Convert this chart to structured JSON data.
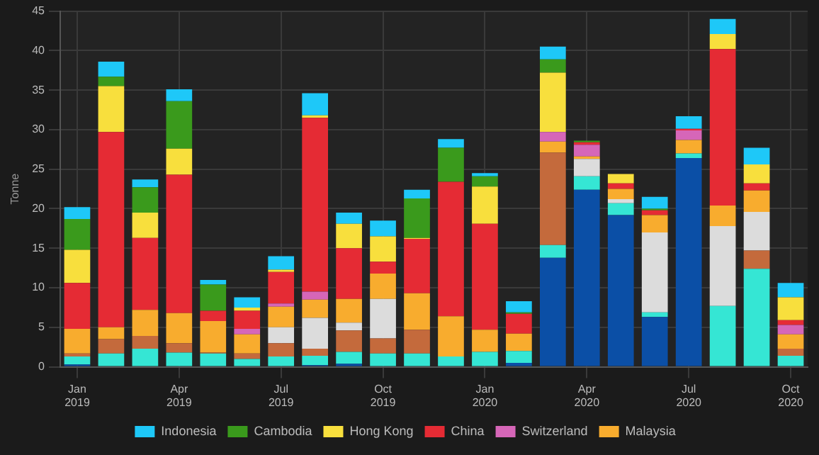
{
  "chart_data": {
    "type": "bar",
    "stacked": true,
    "ylabel": "Tonne",
    "categories": [
      "Jan 2019",
      null,
      null,
      "Apr 2019",
      null,
      null,
      "Jul 2019",
      null,
      null,
      "Oct 2019",
      null,
      null,
      "Jan 2020",
      null,
      null,
      "Apr 2020",
      null,
      null,
      "Jul 2020",
      null,
      null,
      "Oct 2020"
    ],
    "ylim": [
      0,
      45
    ],
    "yticks": [
      0,
      5,
      10,
      15,
      20,
      25,
      30,
      35,
      40,
      45
    ],
    "grid": true,
    "legend": "bottom",
    "series": [
      {
        "color": "#0b4fa6",
        "values": [
          0.3,
          null,
          null,
          null,
          null,
          null,
          null,
          0.2,
          0.4,
          null,
          null,
          null,
          null,
          0.5,
          13.8,
          22.4,
          19.2,
          6.3,
          26.4,
          null,
          null,
          null
        ]
      },
      {
        "color": "#35e6d4",
        "values": [
          1.0,
          1.7,
          2.3,
          1.8,
          1.7,
          1.0,
          1.3,
          1.2,
          1.5,
          1.7,
          1.7,
          1.3,
          1.9,
          1.5,
          1.6,
          1.7,
          1.5,
          0.6,
          0.6,
          7.7,
          12.4,
          1.4
        ]
      },
      {
        "color": "#c46a3c",
        "values": [
          0.4,
          1.8,
          1.6,
          1.2,
          0.1,
          0.7,
          1.7,
          0.9,
          2.7,
          1.9,
          3.0,
          null,
          null,
          null,
          11.7,
          null,
          null,
          null,
          null,
          null,
          2.3,
          0.9
        ]
      },
      {
        "color": "#dcdcdc",
        "values": [
          null,
          null,
          null,
          null,
          null,
          null,
          2.0,
          3.9,
          1.0,
          5.0,
          null,
          null,
          null,
          null,
          null,
          2.2,
          0.5,
          10.1,
          null,
          10.1,
          4.9,
          null
        ]
      },
      {
        "name": "Malaysia",
        "color": "#f8ac2e",
        "values": [
          3.1,
          1.5,
          3.3,
          3.8,
          4.0,
          2.4,
          2.6,
          2.3,
          3.0,
          3.2,
          4.6,
          5.1,
          2.8,
          2.2,
          1.4,
          0.3,
          1.3,
          2.2,
          1.7,
          2.6,
          2.7,
          1.8
        ]
      },
      {
        "name": "Switzerland",
        "color": "#d666b8",
        "values": [
          null,
          null,
          null,
          null,
          null,
          0.7,
          0.4,
          1.0,
          null,
          null,
          null,
          null,
          null,
          null,
          1.2,
          1.5,
          null,
          null,
          1.2,
          null,
          null,
          1.2
        ]
      },
      {
        "name": "China",
        "color": "#e52b34",
        "values": [
          5.8,
          24.7,
          9.1,
          17.5,
          1.3,
          2.3,
          4.0,
          22.0,
          6.4,
          1.5,
          6.9,
          17.0,
          13.4,
          2.5,
          null,
          0.3,
          0.7,
          0.6,
          0.2,
          19.8,
          0.9,
          0.6
        ]
      },
      {
        "name": "Hong Kong",
        "color": "#f8df3d",
        "values": [
          4.2,
          5.8,
          3.2,
          3.3,
          null,
          0.4,
          0.3,
          0.3,
          3.1,
          3.2,
          0.1,
          null,
          4.7,
          null,
          7.5,
          null,
          1.2,
          null,
          null,
          1.9,
          2.4,
          2.9
        ]
      },
      {
        "name": "Cambodia",
        "color": "#3a9a1c",
        "values": [
          3.9,
          1.2,
          3.2,
          6.0,
          3.3,
          null,
          null,
          null,
          null,
          null,
          5.0,
          4.3,
          1.3,
          0.2,
          1.7,
          0.2,
          null,
          0.2,
          null,
          null,
          null,
          null
        ]
      },
      {
        "name": "Indonesia",
        "color": "#1ec8f8",
        "values": [
          1.5,
          1.9,
          1.0,
          1.5,
          0.6,
          1.3,
          1.7,
          2.8,
          1.4,
          2.0,
          1.1,
          1.1,
          0.4,
          1.4,
          1.6,
          null,
          null,
          1.5,
          1.6,
          1.9,
          2.1,
          1.8
        ]
      }
    ]
  }
}
